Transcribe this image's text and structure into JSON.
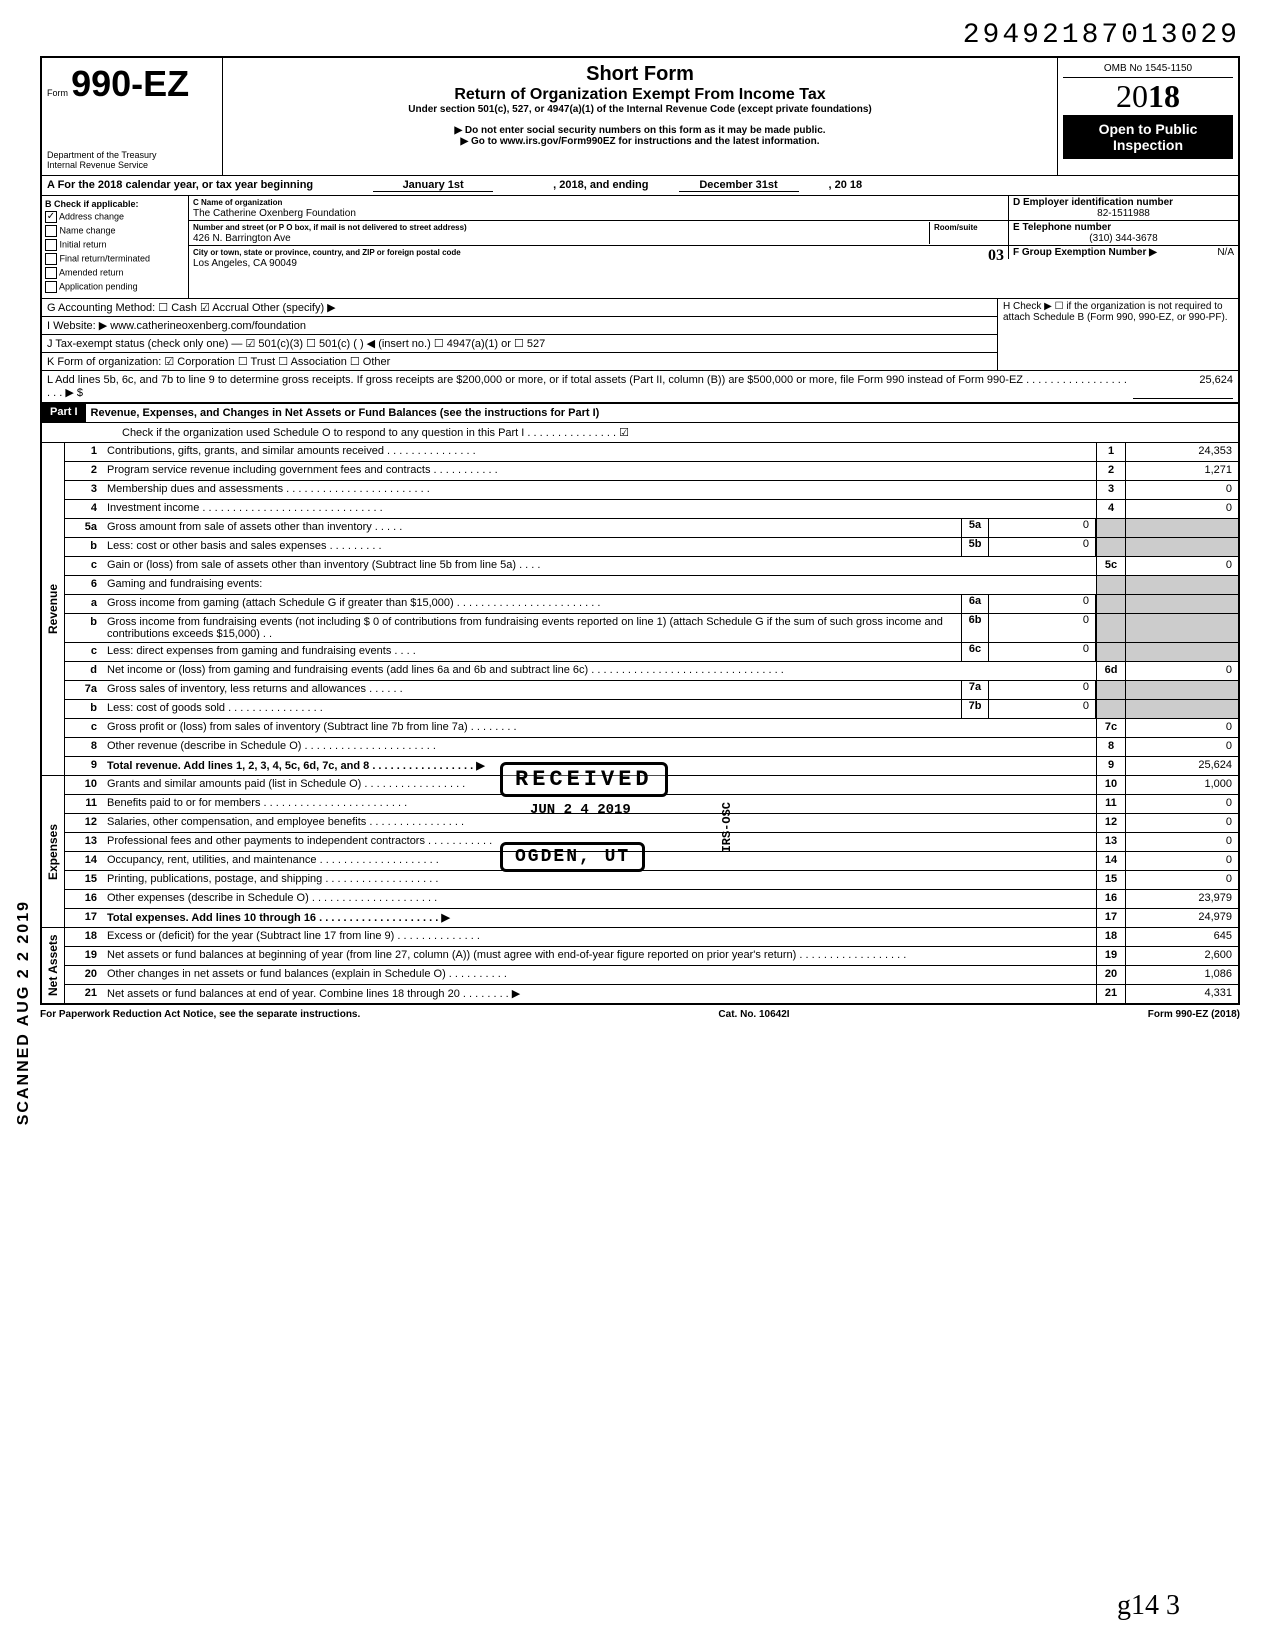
{
  "doc_number": "29492187013029",
  "header": {
    "form_prefix": "Form",
    "form_number": "990-EZ",
    "dept": "Department of the Treasury",
    "irs": "Internal Revenue Service",
    "title_short": "Short Form",
    "title_main": "Return of Organization Exempt From Income Tax",
    "title_under": "Under section 501(c), 527, or 4947(a)(1) of the Internal Revenue Code (except private foundations)",
    "warn": "▶ Do not enter social security numbers on this form as it may be made public.",
    "goto": "▶ Go to www.irs.gov/Form990EZ for instructions and the latest information.",
    "omb": "OMB No 1545-1150",
    "year": "2018",
    "open": "Open to Public Inspection"
  },
  "section_a": {
    "label": "A For the 2018 calendar year, or tax year beginning",
    "start": "January 1st",
    "mid": ", 2018, and ending",
    "end": "December 31st",
    "endyr": ", 20   18"
  },
  "section_b": {
    "label": "B Check if applicable:",
    "items": [
      {
        "label": "Address change",
        "checked": true
      },
      {
        "label": "Name change",
        "checked": false
      },
      {
        "label": "Initial return",
        "checked": false
      },
      {
        "label": "Final return/terminated",
        "checked": false
      },
      {
        "label": "Amended return",
        "checked": false
      },
      {
        "label": "Application pending",
        "checked": false
      }
    ]
  },
  "section_c": {
    "name_lbl": "C Name of organization",
    "name": "The Catherine Oxenberg Foundation",
    "addr_lbl": "Number and street (or P O  box, if mail is not delivered to street address)",
    "room_lbl": "Room/suite",
    "addr": "426 N. Barrington Ave",
    "city_lbl": "City or town, state or province, country, and ZIP or foreign postal code",
    "city": "Los Angeles, CA 90049",
    "handwrite": "03"
  },
  "section_d": {
    "ein_lbl": "D Employer identification number",
    "ein": "82-1511988",
    "tel_lbl": "E Telephone number",
    "tel": "(310) 344-3678",
    "grp_lbl": "F Group Exemption Number ▶",
    "grp": "N/A"
  },
  "section_g": "G Accounting Method:    ☐ Cash    ☑ Accrual    Other (specify) ▶",
  "section_h": "H Check ▶ ☐ if the organization is not required to attach Schedule B (Form 990, 990-EZ, or 990-PF).",
  "section_i": "I  Website: ▶     www.catherineoxenberg.com/foundation",
  "section_j": "J  Tax-exempt status (check only one) — ☑ 501(c)(3)   ☐ 501(c) (        ) ◀ (insert no.) ☐ 4947(a)(1) or   ☐ 527",
  "section_k": "K Form of organization:   ☑ Corporation      ☐ Trust        ☐ Association       ☐ Other",
  "section_l": {
    "text": "L Add lines 5b, 6c, and 7b to line 9 to determine gross receipts. If gross receipts are $200,000 or more, or if total assets (Part II, column (B)) are $500,000 or more, file Form 990 instead of Form 990-EZ . . . . . . . . . . . . . . . . . . . .  ▶   $",
    "value": "25,624"
  },
  "part1": {
    "label": "Part I",
    "title": "Revenue, Expenses, and Changes in Net Assets or Fund Balances (see the instructions for Part I)",
    "check_text": "Check if the organization used Schedule O to respond to any question in this Part I . . . . . . . . . . . . . . .  ☑"
  },
  "sections": [
    {
      "label": "Revenue",
      "lines": [
        {
          "n": "1",
          "desc": "Contributions, gifts, grants, and similar amounts received . . . . . . . . . . . . . . .",
          "box": "1",
          "val": "24,353"
        },
        {
          "n": "2",
          "desc": "Program service revenue including government fees and contracts . . . . . . . . . . .",
          "box": "2",
          "val": "1,271"
        },
        {
          "n": "3",
          "desc": "Membership dues and assessments . . . . . . . . . . . . . . . . . . . . . . . .",
          "box": "3",
          "val": "0"
        },
        {
          "n": "4",
          "desc": "Investment income  . . . . . . . . . . . . . . . . . . . . . . . . . . . . . .",
          "box": "4",
          "val": "0"
        },
        {
          "n": "5a",
          "desc": "Gross amount from sale of assets other than inventory  . . . . .",
          "sub": "5a",
          "subval": "0",
          "shaded": true
        },
        {
          "n": "b",
          "desc": "Less: cost or other basis and sales expenses . . . . . . . . .",
          "sub": "5b",
          "subval": "0",
          "shaded": true
        },
        {
          "n": "c",
          "desc": "Gain or (loss) from sale of assets other than inventory (Subtract line 5b from line 5a) . . . .",
          "box": "5c",
          "val": "0"
        },
        {
          "n": "6",
          "desc": "Gaming and fundraising events:",
          "shaded": true
        },
        {
          "n": "a",
          "desc": "Gross income from gaming (attach Schedule G if greater than $15,000) . . . . . . . . . . . . . . . . . . . . . . . .",
          "sub": "6a",
          "subval": "0",
          "shaded": true
        },
        {
          "n": "b",
          "desc": "Gross income from fundraising events (not including  $         0 of contributions from fundraising events reported on line 1) (attach Schedule G if the sum of such gross income and contributions exceeds $15,000) . .",
          "sub": "6b",
          "subval": "0",
          "shaded": true
        },
        {
          "n": "c",
          "desc": "Less: direct expenses from gaming and fundraising events  . . . .",
          "sub": "6c",
          "subval": "0",
          "shaded": true
        },
        {
          "n": "d",
          "desc": "Net income or (loss) from gaming and fundraising events (add lines 6a and 6b and subtract line 6c) . . . . . . . . . . . . . . . . . . . . . . . . . . . . . . . .",
          "box": "6d",
          "val": "0"
        },
        {
          "n": "7a",
          "desc": "Gross sales of inventory, less returns and allowances . . . . . .",
          "sub": "7a",
          "subval": "0",
          "shaded": true
        },
        {
          "n": "b",
          "desc": "Less: cost of goods sold  . . . . . . . . . . . . . . . .",
          "sub": "7b",
          "subval": "0",
          "shaded": true
        },
        {
          "n": "c",
          "desc": "Gross profit or (loss) from sales of inventory (Subtract line 7b from line 7a) . . . . . . . .",
          "box": "7c",
          "val": "0"
        },
        {
          "n": "8",
          "desc": "Other revenue (describe in Schedule O) . . . . . . . . . . . . . . . . . . . . . .",
          "box": "8",
          "val": "0"
        },
        {
          "n": "9",
          "desc": "Total revenue. Add lines 1, 2, 3, 4, 5c, 6d, 7c, and 8 . . . . . . . . . . . . . . . . .  ▶",
          "box": "9",
          "val": "25,624",
          "bold": true
        }
      ]
    },
    {
      "label": "Expenses",
      "lines": [
        {
          "n": "10",
          "desc": "Grants and similar amounts paid (list in Schedule O) . . . . . . . . . . . . . . . . .",
          "box": "10",
          "val": "1,000"
        },
        {
          "n": "11",
          "desc": "Benefits paid to or for members . . . . . . . . . . . . . . . . . . . . . . . .",
          "box": "11",
          "val": "0"
        },
        {
          "n": "12",
          "desc": "Salaries, other compensation, and employee benefits . . . . . . . . . . . . . . . .",
          "box": "12",
          "val": "0"
        },
        {
          "n": "13",
          "desc": "Professional fees and other payments to independent contractors . . . . . . . . . . .",
          "box": "13",
          "val": "0"
        },
        {
          "n": "14",
          "desc": "Occupancy, rent, utilities, and maintenance . . . . . . . . . . . . . . . . . . . .",
          "box": "14",
          "val": "0"
        },
        {
          "n": "15",
          "desc": "Printing, publications, postage, and shipping . . . . . . . . . . . . . . . . . . .",
          "box": "15",
          "val": "0"
        },
        {
          "n": "16",
          "desc": "Other expenses (describe in Schedule O) . . . . . . . . . . . . . . . . . . . . .",
          "box": "16",
          "val": "23,979"
        },
        {
          "n": "17",
          "desc": "Total expenses. Add lines 10 through 16 . . . . . . . . . . . . . . . . . . . .  ▶",
          "box": "17",
          "val": "24,979",
          "bold": true
        }
      ]
    },
    {
      "label": "Net Assets",
      "lines": [
        {
          "n": "18",
          "desc": "Excess or (deficit) for the year (Subtract line 17 from line 9) . . . . . . . . . . . . . .",
          "box": "18",
          "val": "645"
        },
        {
          "n": "19",
          "desc": "Net assets or fund balances at beginning of year (from line 27, column (A)) (must agree with end-of-year figure reported on prior year's return) . . . . . . . . . . . . . . . . . .",
          "box": "19",
          "val": "2,600"
        },
        {
          "n": "20",
          "desc": "Other changes in net assets or fund balances (explain in Schedule O) . . . . . . . . . .",
          "box": "20",
          "val": "1,086"
        },
        {
          "n": "21",
          "desc": "Net assets or fund balances at end of year. Combine lines 18 through 20 . . . . . . . .  ▶",
          "box": "21",
          "val": "4,331"
        }
      ]
    }
  ],
  "footer": {
    "left": "For Paperwork Reduction Act Notice, see the separate instructions.",
    "mid": "Cat. No. 10642I",
    "right": "Form 990-EZ (2018)"
  },
  "stamps": {
    "received": "RECEIVED",
    "date": "JUN 2 4 2019",
    "ogden": "OGDEN, UT",
    "irs_osc": "IRS-OSC",
    "scanned": "SCANNED AUG 2 2 2019"
  },
  "signature": "g14     3"
}
